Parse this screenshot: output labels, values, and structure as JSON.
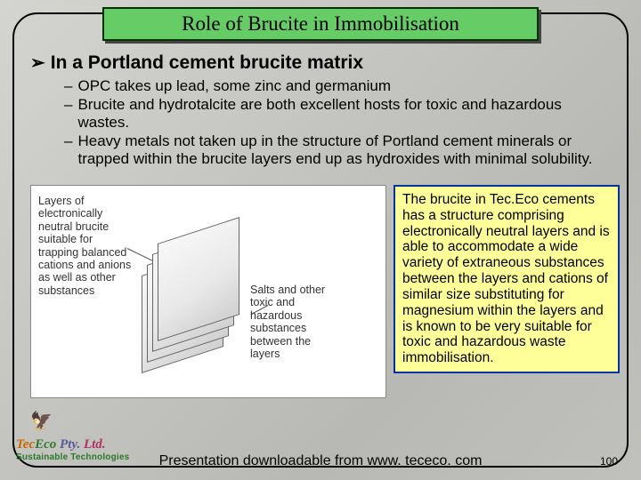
{
  "title": "Role of Brucite in Immobilisation",
  "heading": "In a Portland cement brucite matrix",
  "bullets": [
    "OPC takes up lead, some zinc and germanium",
    "Brucite and hydrotalcite are both excellent hosts for toxic and hazardous wastes.",
    "Heavy metals not taken up in the structure of Portland cement minerals or trapped within the brucite layers end up as hydroxides with minimal solubility."
  ],
  "diagram": {
    "left_label": "Layers of electronically neutral brucite suitable for trapping balanced cations and anions as well as other substances",
    "right_label": "Salts and other toxic and hazardous substances between the layers"
  },
  "callout": "The brucite in Tec.Eco cements has a structure comprising electronically neutral layers and is able to accommodate a wide variety of extraneous substances between the layers and cations of similar size substituting for magnesium within the layers and is known to be very suitable for toxic and hazardous waste immobilisation.",
  "footer": "Presentation downloadable from www. tececo. com",
  "page_number": "100",
  "logo": {
    "line1_a": "Tec",
    "line1_b": "Eco ",
    "line1_c": "Pty. ",
    "line1_d": "Ltd.",
    "line2": "Sustainable Technologies"
  },
  "colors": {
    "title_bg": "#66cc66",
    "title_border": "#003300",
    "callout_bg": "#ffff99",
    "callout_border": "#003399",
    "slide_border": "#000000"
  }
}
